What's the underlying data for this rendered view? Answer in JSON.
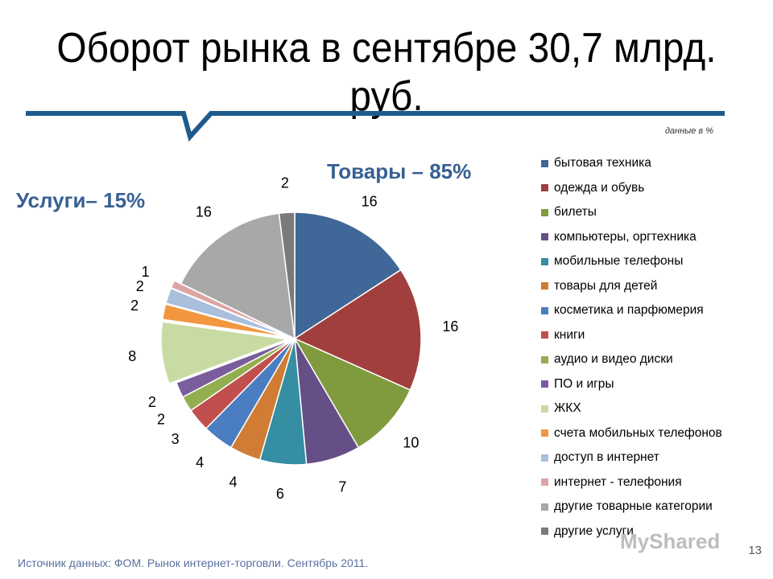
{
  "title": "Оборот рынка в сентябре 30,7 млрд. руб.",
  "unit_note": "данные в %",
  "group_goods_label": "Товары – 85%",
  "group_services_label": "Услуги– 15%",
  "source": "Источник данных: ФОМ. Рынок интернет-торговли. Сентябрь 2011.",
  "page_number": "13",
  "watermark": "MyShared",
  "chart_data": {
    "type": "pie",
    "unit": "%",
    "categories": [
      "бытовая техника",
      "одежда и обувь",
      "билеты",
      "компьютеры, оргтехника",
      "мобильные телефоны",
      "товары для детей",
      "косметика и парфюмерия",
      "книги",
      "аудио и видео диски",
      "ПО и игры",
      "ЖКХ",
      "счета мобильных телефонов",
      "доступ в интернет",
      "интернет - телефония",
      "другие товарные категории",
      "другие услуги"
    ],
    "values": [
      16,
      16,
      10,
      7,
      6,
      4,
      4,
      3,
      2,
      2,
      8,
      2,
      2,
      1,
      16,
      2
    ],
    "colors": [
      "#3f6797",
      "#a03f3d",
      "#7f9b3e",
      "#664e86",
      "#358ea2",
      "#d07c34",
      "#4a7ec0",
      "#c14f4d",
      "#93ae4e",
      "#7a5d9c",
      "#c8dba2",
      "#f2973f",
      "#a9bfdc",
      "#dea4a4",
      "#a8a8a8",
      "#7a7a7a"
    ],
    "exploded": [
      false,
      false,
      false,
      false,
      false,
      false,
      false,
      false,
      false,
      false,
      true,
      true,
      true,
      true,
      false,
      false
    ],
    "legend_position": "right"
  }
}
